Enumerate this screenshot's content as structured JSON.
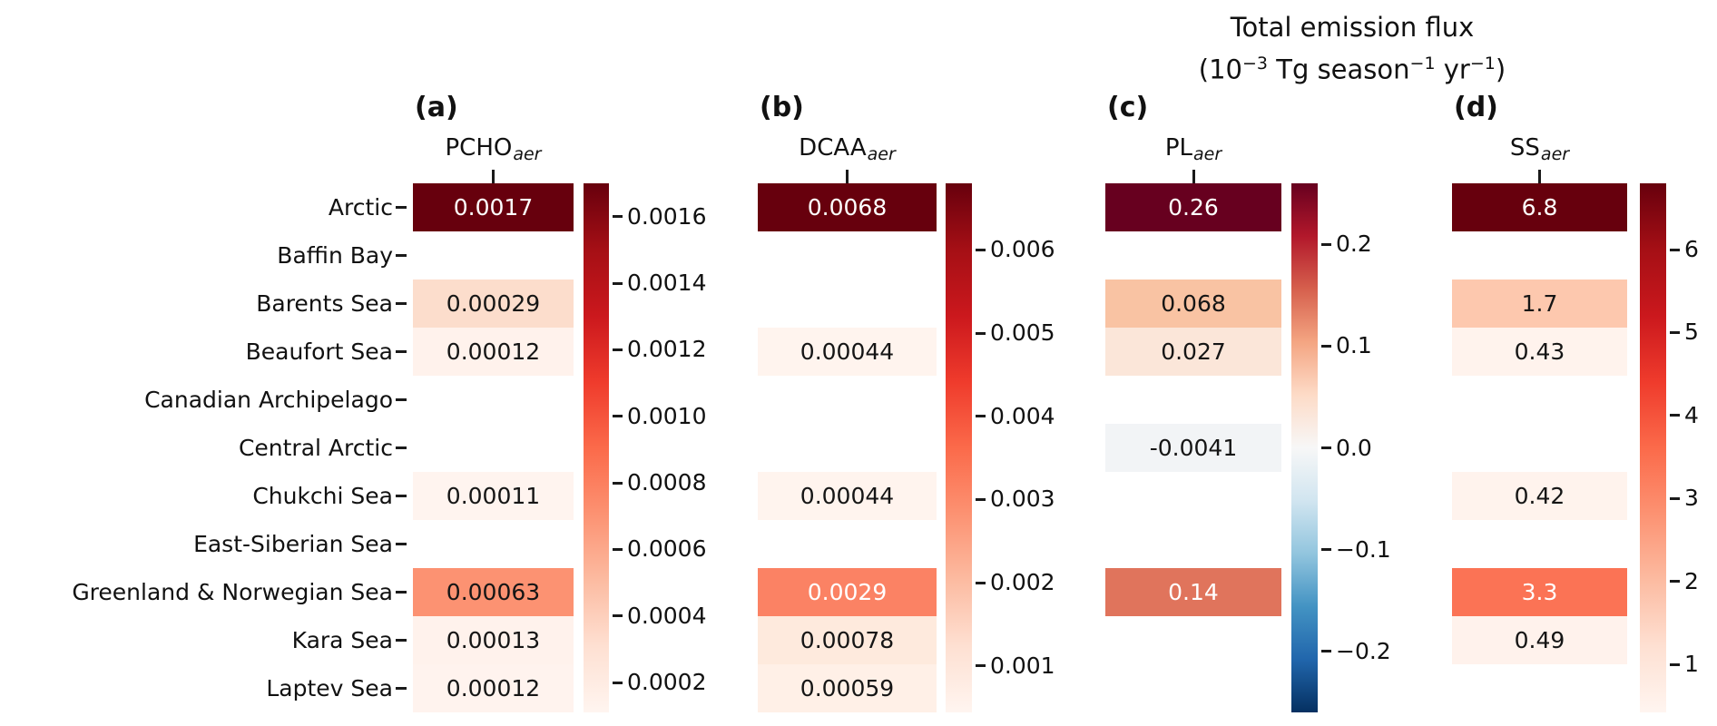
{
  "title": {
    "line1": "Total emission flux",
    "line2_parts": [
      {
        "text": "(10"
      },
      {
        "sup": "−3"
      },
      {
        "text": " Tg season"
      },
      {
        "sup": "−1"
      },
      {
        "text": " yr"
      },
      {
        "sup": "−1"
      },
      {
        "text": ")"
      }
    ]
  },
  "rows": [
    "Arctic",
    "Baffin Bay",
    "Barents Sea",
    "Beaufort Sea",
    "Canadian Archipelago",
    "Central Arctic",
    "Chukchi Sea",
    "East-Siberian Sea",
    "Greenland & Norwegian Sea",
    "Kara Sea",
    "Laptev Sea"
  ],
  "panels": [
    {
      "letter": "(a)",
      "header": {
        "base": "PCHO",
        "sub": "aer"
      },
      "colormap": "reds",
      "colorbar": {
        "vmin": 0.00011,
        "vmax": 0.0017,
        "ticks": [
          {
            "label": "0.0016",
            "value": 0.0016
          },
          {
            "label": "0.0014",
            "value": 0.0014
          },
          {
            "label": "0.0012",
            "value": 0.0012
          },
          {
            "label": "0.0010",
            "value": 0.001
          },
          {
            "label": "0.0008",
            "value": 0.0008
          },
          {
            "label": "0.0006",
            "value": 0.0006
          },
          {
            "label": "0.0004",
            "value": 0.0004
          },
          {
            "label": "0.0002",
            "value": 0.0002
          }
        ]
      },
      "cells": [
        {
          "value": "0.0017",
          "bg": "#67000d",
          "fg": "#ffffff"
        },
        {
          "value": "",
          "bg": "",
          "fg": ""
        },
        {
          "value": "0.00029",
          "bg": "#fcddcc",
          "fg": "#151515"
        },
        {
          "value": "0.00012",
          "bg": "#fff2ec",
          "fg": "#151515"
        },
        {
          "value": "",
          "bg": "",
          "fg": ""
        },
        {
          "value": "",
          "bg": "",
          "fg": ""
        },
        {
          "value": "0.00011",
          "bg": "#fff4ef",
          "fg": "#151515"
        },
        {
          "value": "",
          "bg": "",
          "fg": ""
        },
        {
          "value": "0.00063",
          "bg": "#fc9272",
          "fg": "#151515"
        },
        {
          "value": "0.00013",
          "bg": "#fff2ec",
          "fg": "#151515"
        },
        {
          "value": "0.00012",
          "bg": "#fff3ee",
          "fg": "#151515"
        }
      ]
    },
    {
      "letter": "(b)",
      "header": {
        "base": "DCAA",
        "sub": "aer"
      },
      "colormap": "reds",
      "colorbar": {
        "vmin": 0.00044,
        "vmax": 0.0068,
        "ticks": [
          {
            "label": "0.006",
            "value": 0.006
          },
          {
            "label": "0.005",
            "value": 0.005
          },
          {
            "label": "0.004",
            "value": 0.004
          },
          {
            "label": "0.003",
            "value": 0.003
          },
          {
            "label": "0.002",
            "value": 0.002
          },
          {
            "label": "0.001",
            "value": 0.001
          }
        ]
      },
      "cells": [
        {
          "value": "0.0068",
          "bg": "#67000d",
          "fg": "#ffffff"
        },
        {
          "value": "",
          "bg": "",
          "fg": ""
        },
        {
          "value": "",
          "bg": "",
          "fg": ""
        },
        {
          "value": "0.00044",
          "bg": "#fff4ee",
          "fg": "#151515"
        },
        {
          "value": "",
          "bg": "",
          "fg": ""
        },
        {
          "value": "",
          "bg": "",
          "fg": ""
        },
        {
          "value": "0.00044",
          "bg": "#fff4ee",
          "fg": "#151515"
        },
        {
          "value": "",
          "bg": "",
          "fg": ""
        },
        {
          "value": "0.0029",
          "bg": "#fb8264",
          "fg": "#ffffff"
        },
        {
          "value": "0.00078",
          "bg": "#feeadd",
          "fg": "#151515"
        },
        {
          "value": "0.00059",
          "bg": "#fff0e7",
          "fg": "#151515"
        }
      ]
    },
    {
      "letter": "(c)",
      "header": {
        "base": "PL",
        "sub": "aer"
      },
      "colormap": "rdbu",
      "colorbar": {
        "vmin": -0.26,
        "vmax": 0.26,
        "ticks": [
          {
            "label": "0.2",
            "value": 0.2
          },
          {
            "label": "0.1",
            "value": 0.1
          },
          {
            "label": "0.0",
            "value": 0.0
          },
          {
            "label": "−0.1",
            "value": -0.1
          },
          {
            "label": "−0.2",
            "value": -0.2
          }
        ]
      },
      "cells": [
        {
          "value": "0.26",
          "bg": "#67001f",
          "fg": "#ffffff"
        },
        {
          "value": "",
          "bg": "",
          "fg": ""
        },
        {
          "value": "0.068",
          "bg": "#f9c3a3",
          "fg": "#151515"
        },
        {
          "value": "0.027",
          "bg": "#fbe6d9",
          "fg": "#151515"
        },
        {
          "value": "",
          "bg": "",
          "fg": ""
        },
        {
          "value": "-0.0041",
          "bg": "#f2f4f6",
          "fg": "#151515"
        },
        {
          "value": "",
          "bg": "",
          "fg": ""
        },
        {
          "value": "",
          "bg": "",
          "fg": ""
        },
        {
          "value": "0.14",
          "bg": "#e0745c",
          "fg": "#ffffff"
        },
        {
          "value": "",
          "bg": "",
          "fg": ""
        },
        {
          "value": "",
          "bg": "",
          "fg": ""
        }
      ]
    },
    {
      "letter": "(d)",
      "header": {
        "base": "SS",
        "sub": "aer"
      },
      "colormap": "reds",
      "colorbar": {
        "vmin": 0.42,
        "vmax": 6.8,
        "ticks": [
          {
            "label": "6",
            "value": 6
          },
          {
            "label": "5",
            "value": 5
          },
          {
            "label": "4",
            "value": 4
          },
          {
            "label": "3",
            "value": 3
          },
          {
            "label": "2",
            "value": 2
          },
          {
            "label": "1",
            "value": 1
          }
        ]
      },
      "cells": [
        {
          "value": "6.8",
          "bg": "#67000d",
          "fg": "#ffffff"
        },
        {
          "value": "",
          "bg": "",
          "fg": ""
        },
        {
          "value": "1.7",
          "bg": "#fdc8ae",
          "fg": "#151515"
        },
        {
          "value": "0.43",
          "bg": "#fff3ed",
          "fg": "#151515"
        },
        {
          "value": "",
          "bg": "",
          "fg": ""
        },
        {
          "value": "",
          "bg": "",
          "fg": ""
        },
        {
          "value": "0.42",
          "bg": "#fff3ed",
          "fg": "#151515"
        },
        {
          "value": "",
          "bg": "",
          "fg": ""
        },
        {
          "value": "3.3",
          "bg": "#fb7355",
          "fg": "#ffffff"
        },
        {
          "value": "0.49",
          "bg": "#fff2ec",
          "fg": "#151515"
        },
        {
          "value": "",
          "bg": "",
          "fg": ""
        }
      ]
    }
  ],
  "chart_data": {
    "type": "heatmap",
    "title": "Total emission flux (10⁻³ Tg season⁻¹ yr⁻¹)",
    "categories": [
      "Arctic",
      "Baffin Bay",
      "Barents Sea",
      "Beaufort Sea",
      "Canadian Archipelago",
      "Central Arctic",
      "Chukchi Sea",
      "East-Siberian Sea",
      "Greenland & Norwegian Sea",
      "Kara Sea",
      "Laptev Sea"
    ],
    "series": [
      {
        "panel": "(a)",
        "name": "PCHO_aer",
        "colormap": "Reds",
        "values": [
          0.0017,
          null,
          0.00029,
          0.00012,
          null,
          null,
          0.00011,
          null,
          0.00063,
          0.00013,
          0.00012
        ],
        "colorbar_range": [
          0.00011,
          0.0017
        ],
        "colorbar_ticks": [
          0.0016,
          0.0014,
          0.0012,
          0.001,
          0.0008,
          0.0006,
          0.0004,
          0.0002
        ]
      },
      {
        "panel": "(b)",
        "name": "DCAA_aer",
        "colormap": "Reds",
        "values": [
          0.0068,
          null,
          null,
          0.00044,
          null,
          null,
          0.00044,
          null,
          0.0029,
          0.00078,
          0.00059
        ],
        "colorbar_range": [
          0.00044,
          0.0068
        ],
        "colorbar_ticks": [
          0.006,
          0.005,
          0.004,
          0.003,
          0.002,
          0.001
        ]
      },
      {
        "panel": "(c)",
        "name": "PL_aer",
        "colormap": "RdBu_r",
        "values": [
          0.26,
          null,
          0.068,
          0.027,
          null,
          -0.0041,
          null,
          null,
          0.14,
          null,
          null
        ],
        "colorbar_range": [
          -0.26,
          0.26
        ],
        "colorbar_ticks": [
          0.2,
          0.1,
          0.0,
          -0.1,
          -0.2
        ]
      },
      {
        "panel": "(d)",
        "name": "SS_aer",
        "colormap": "Reds",
        "values": [
          6.8,
          null,
          1.7,
          0.43,
          null,
          null,
          0.42,
          null,
          3.3,
          0.49,
          null
        ],
        "colorbar_range": [
          0.42,
          6.8
        ],
        "colorbar_ticks": [
          6,
          5,
          4,
          3,
          2,
          1
        ]
      }
    ],
    "legend_position": "right-colorbar-per-panel",
    "grid": false
  }
}
